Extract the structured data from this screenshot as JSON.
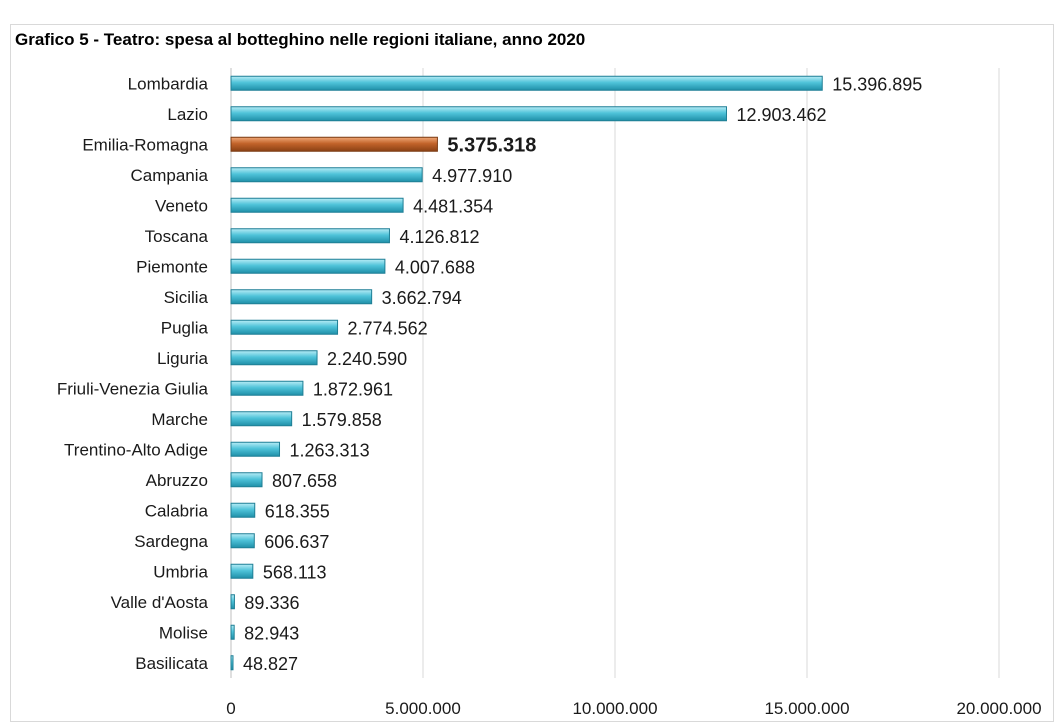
{
  "chart_data": {
    "type": "bar",
    "orientation": "horizontal",
    "title": "Grafico 5 - Teatro: spesa al botteghino nelle regioni italiane, anno 2020",
    "categories": [
      "Lombardia",
      "Lazio",
      "Emilia-Romagna",
      "Campania",
      "Veneto",
      "Toscana",
      "Piemonte",
      "Sicilia",
      "Puglia",
      "Liguria",
      "Friuli-Venezia Giulia",
      "Marche",
      "Trentino-Alto Adige",
      "Abruzzo",
      "Calabria",
      "Sardegna",
      "Umbria",
      "Valle d'Aosta",
      "Molise",
      "Basilicata"
    ],
    "values": [
      15396895,
      12903462,
      5375318,
      4977910,
      4481354,
      4126812,
      4007688,
      3662794,
      2774562,
      2240590,
      1872961,
      1579858,
      1263313,
      807658,
      618355,
      606637,
      568113,
      89336,
      82943,
      48827
    ],
    "value_labels": [
      "15.396.895",
      "12.903.462",
      "5.375.318",
      "4.977.910",
      "4.481.354",
      "4.126.812",
      "4.007.688",
      "3.662.794",
      "2.774.562",
      "2.240.590",
      "1.872.961",
      "1.579.858",
      "1.263.313",
      "807.658",
      "618.355",
      "606.637",
      "568.113",
      "89.336",
      "82.943",
      "48.827"
    ],
    "highlight_category": "Emilia-Romagna",
    "xlim": [
      0,
      20000000
    ],
    "xticks": [
      0,
      5000000,
      10000000,
      15000000,
      20000000
    ],
    "xtick_labels": [
      "0",
      "5.000.000",
      "10.000.000",
      "15.000.000",
      "20.000.000"
    ],
    "grid": "vertical",
    "legend": "none",
    "colors": {
      "bar": "#4fc3d9",
      "bar_edge": "#1f7f95",
      "highlight": "#c2632a",
      "highlight_edge": "#7a3a12",
      "grid": "#d9d9d9"
    }
  }
}
